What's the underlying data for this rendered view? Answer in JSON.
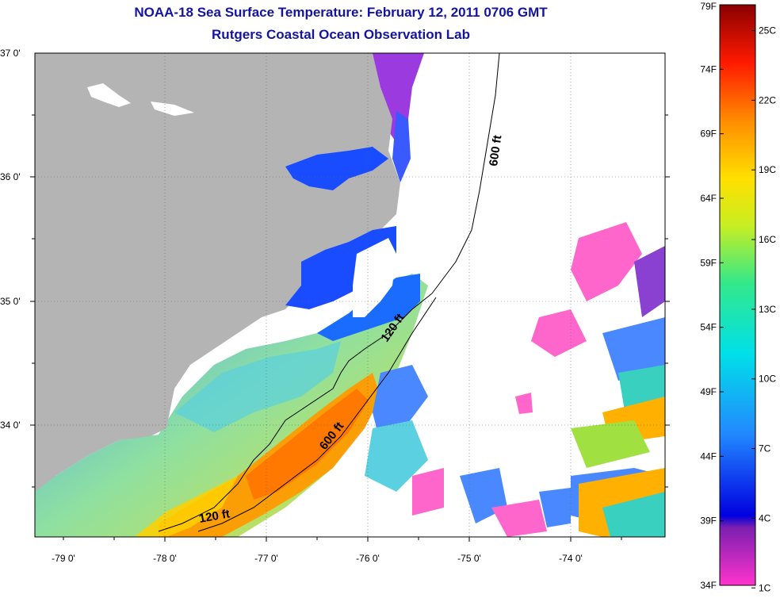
{
  "title": {
    "line1": "NOAA-18 Sea Surface Temperature:  February 12, 2011 0706 GMT",
    "line2": "Rutgers Coastal Ocean Observation Lab"
  },
  "axes": {
    "lat_labels": [
      "37 0'",
      "36 0'",
      "35 0'",
      "34 0'"
    ],
    "lon_labels": [
      "-79 0'",
      "-78 0'",
      "-77 0'",
      "-76 0'",
      "-75 0'",
      "-74 0'"
    ]
  },
  "contours": {
    "label_600_north": "600 ft",
    "label_600_south": "600 ft",
    "label_120_north": "120 ft",
    "label_120_south": "120 ft"
  },
  "colorbar": {
    "fahrenheit": [
      "79F",
      "74F",
      "69F",
      "64F",
      "59F",
      "54F",
      "49F",
      "44F",
      "39F",
      "34F"
    ],
    "celsius": [
      "25C",
      "22C",
      "19C",
      "16C",
      "13C",
      "10C",
      "7C",
      "4C",
      "1C"
    ]
  },
  "colors": {
    "land": "#b4b4b4",
    "cloud": "#ffffff",
    "title": "#1414a0"
  }
}
